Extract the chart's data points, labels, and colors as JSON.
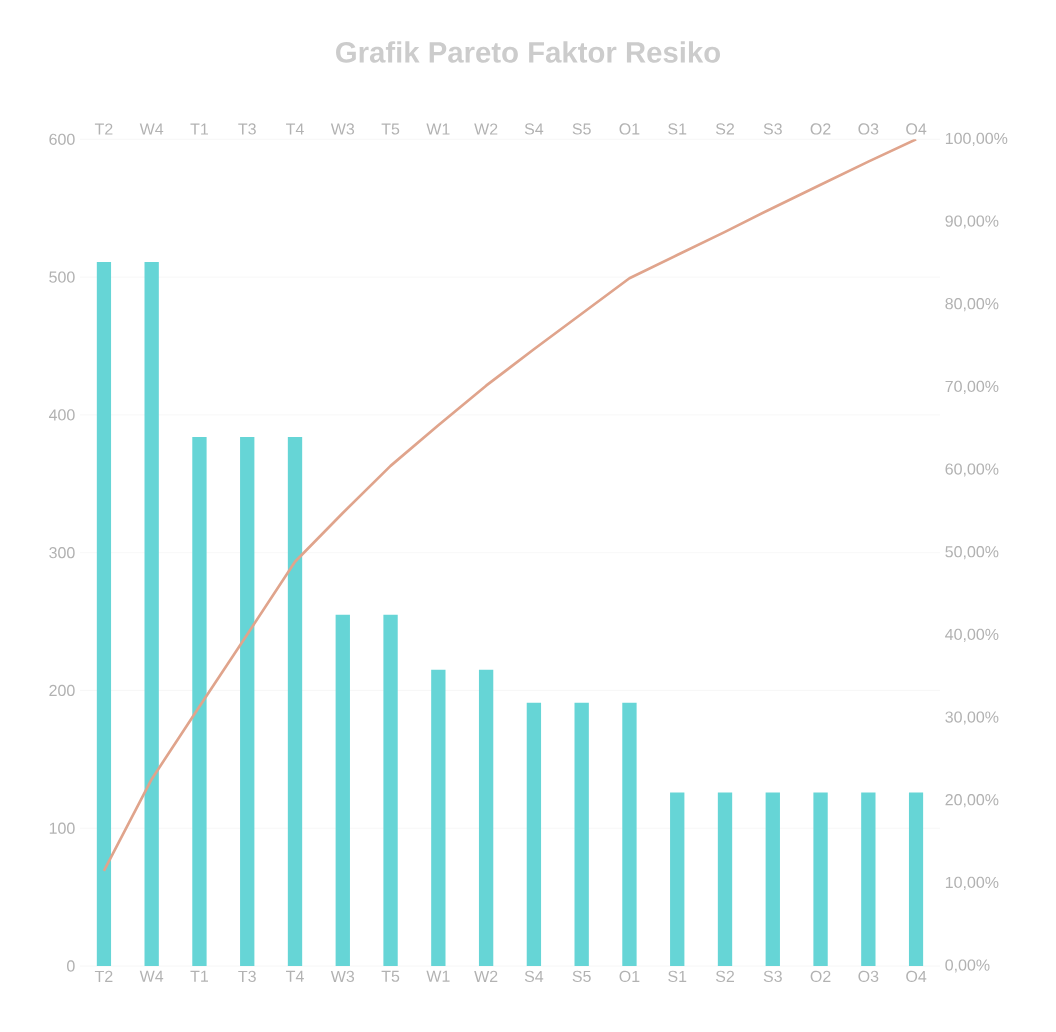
{
  "chart_data": {
    "type": "bar",
    "title": "Grafik Pareto Faktor Resiko",
    "categories": [
      "T2",
      "W4",
      "T1",
      "T3",
      "T4",
      "W3",
      "T5",
      "W1",
      "W2",
      "S4",
      "S5",
      "O1",
      "S1",
      "S2",
      "S3",
      "O2",
      "O3",
      "O4"
    ],
    "series": [
      {
        "color": "#66d5d6",
        "values": [
          511,
          511,
          384,
          384,
          384,
          255,
          255,
          215,
          215,
          191,
          191,
          191,
          126,
          126,
          126,
          126,
          126,
          126
        ]
      },
      {
        "type": "line",
        "axis": "y2",
        "color": "#e0a48c",
        "values": [
          11.5,
          22.6,
          31.4,
          40.1,
          48.9,
          54.8,
          60.5,
          65.4,
          70.2,
          74.6,
          78.9,
          83.2,
          86.0,
          88.8,
          91.7,
          94.5,
          97.3,
          100.0
        ]
      }
    ],
    "ylim": [
      0,
      600
    ],
    "yticks": [
      0,
      100,
      200,
      300,
      400,
      500,
      600
    ],
    "y2lim": [
      0,
      100
    ],
    "y2ticks": [
      {
        "value": 0,
        "label": "0,00%"
      },
      {
        "value": 10,
        "label": "10,00%"
      },
      {
        "value": 20,
        "label": "20,00%"
      },
      {
        "value": 30,
        "label": "30,00%"
      },
      {
        "value": 40,
        "label": "40,00%"
      },
      {
        "value": 50,
        "label": "50,00%"
      },
      {
        "value": 60,
        "label": "60,00%"
      },
      {
        "value": 70,
        "label": "70,00%"
      },
      {
        "value": 80,
        "label": "80,00%"
      },
      {
        "value": 90,
        "label": "90,00%"
      },
      {
        "value": 100,
        "label": "100,00%"
      }
    ],
    "grid": "y"
  }
}
